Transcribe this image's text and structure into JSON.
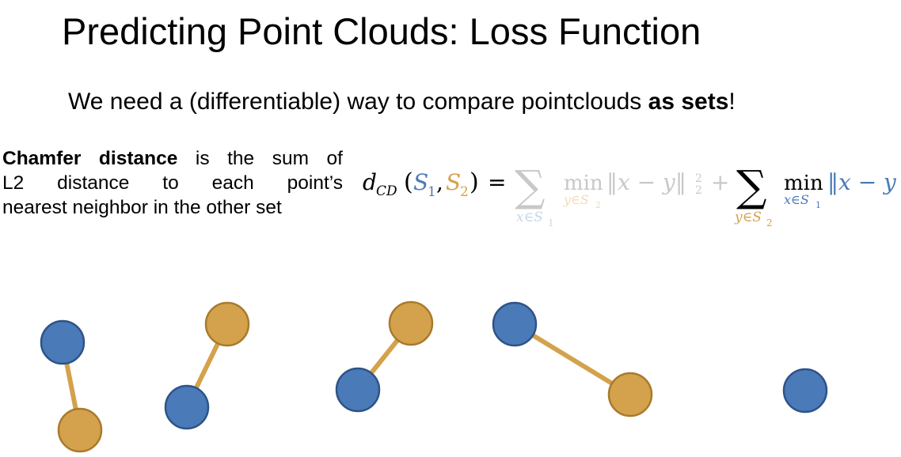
{
  "title": "Predicting Point Clouds: Loss Function",
  "subtitle": {
    "before": "We need a (differentiable) way to compare pointclouds ",
    "bold": "as sets",
    "after": "!"
  },
  "description": {
    "bold": "Chamfer distance",
    "line1_rest": " is the sum of",
    "line2": "L2 distance to each point’s",
    "line3": "nearest neighbor in the other set"
  },
  "formula": {
    "lhs_d": "d",
    "lhs_sub": "CD",
    "s1": "S",
    "s1_sub": "1",
    "s2": "S",
    "s2_sub": "2",
    "equals": "=",
    "sum_symbol": "∑",
    "sum1_index": "x∈S",
    "sum1_index_sub": "1",
    "min_word": "min",
    "min1_index": "y∈S",
    "min1_index_sub": "2",
    "norm1_body": "‖x − y‖",
    "norm1_sup": "2",
    "norm1_sub": "2",
    "plus": "+",
    "sum2_index": "y∈S",
    "sum2_index_sub": "2",
    "min2_index": "x∈S",
    "min2_index_sub": "1",
    "norm2_body": "‖x − y"
  },
  "colors": {
    "blue": "#4a7ab8",
    "blue_stroke": "#2e5387",
    "orange": "#d4a24c",
    "orange_stroke": "#a87a2c",
    "faded_gray": "#c8c8c8",
    "faded_blue": "#c6d6ea",
    "faded_orange": "#efdcb8"
  },
  "diagram": {
    "blue_points": 5,
    "orange_points": 4,
    "links": 4
  }
}
